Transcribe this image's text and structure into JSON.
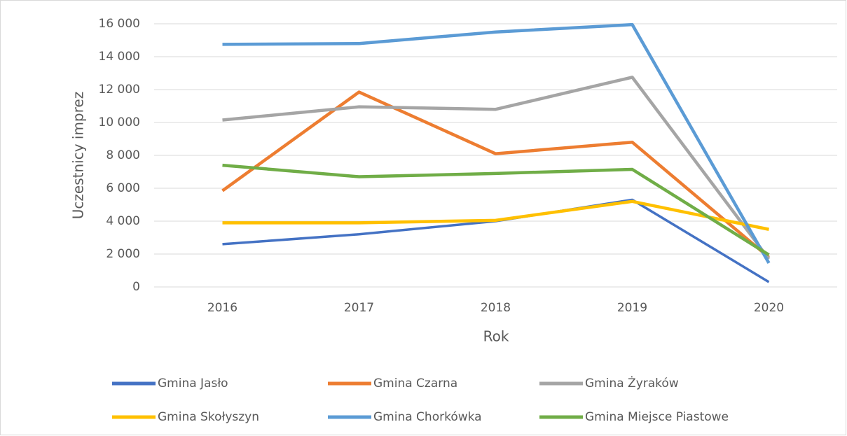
{
  "chart_data": {
    "type": "line",
    "x_label": "Rok",
    "y_label": "Uczestnicy imprez",
    "categories": [
      "2016",
      "2017",
      "2018",
      "2019",
      "2020"
    ],
    "series": [
      {
        "name": "Gmina Jasło",
        "color": "#4472c4",
        "values": [
          2600,
          3200,
          4000,
          5300,
          300
        ]
      },
      {
        "name": "Gmina Czarna",
        "color": "#ed7d31",
        "values": [
          5850,
          11850,
          8100,
          8800,
          1800
        ]
      },
      {
        "name": "Gmina Żyraków",
        "color": "#a5a5a5",
        "values": [
          10150,
          10950,
          10800,
          12750,
          1700
        ]
      },
      {
        "name": "Gmina Skołyszyn",
        "color": "#ffc000",
        "values": [
          3900,
          3900,
          4050,
          5200,
          3500
        ]
      },
      {
        "name": "Gmina Chorkówka",
        "color": "#5b9bd5",
        "values": [
          14750,
          14800,
          15500,
          15950,
          1450
        ]
      },
      {
        "name": "Gmina Miejsce Piastowe",
        "color": "#70ad47",
        "values": [
          7400,
          6700,
          6900,
          7150,
          1950
        ]
      }
    ],
    "ylim": [
      0,
      16000
    ],
    "yticks": [
      0,
      {
        "value": 2000,
        "label": "2 000"
      },
      {
        "value": 4000,
        "label": "4 000"
      },
      {
        "value": 6000,
        "label": "6 000"
      },
      {
        "value": 8000,
        "label": "8 000"
      },
      {
        "value": 10000,
        "label": "10 000"
      },
      {
        "value": 12000,
        "label": "12 000"
      },
      {
        "value": 14000,
        "label": "14 000"
      },
      {
        "value": 16000,
        "label": "16 000"
      }
    ],
    "grid": true,
    "legend": "bottom"
  }
}
